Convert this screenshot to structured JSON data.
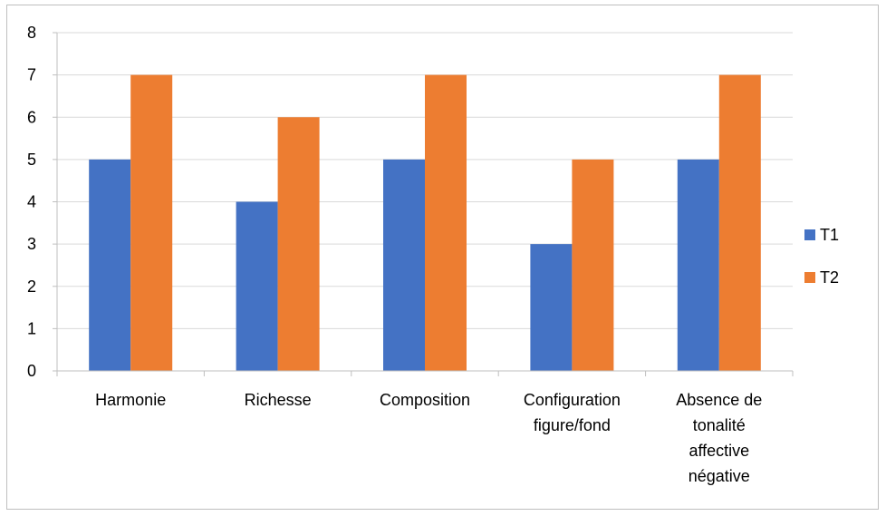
{
  "chart_data": {
    "type": "bar",
    "categories": [
      [
        "Harmonie"
      ],
      [
        "Richesse"
      ],
      [
        "Composition"
      ],
      [
        "Configuration",
        "figure/fond"
      ],
      [
        "Absence de",
        "tonalité",
        "affective",
        "négative"
      ]
    ],
    "series": [
      {
        "name": "T1",
        "color": "#4472C4",
        "values": [
          5,
          4,
          5,
          3,
          5
        ]
      },
      {
        "name": "T2",
        "color": "#ED7D31",
        "values": [
          7,
          6,
          7,
          5,
          7
        ]
      }
    ],
    "y_ticks": [
      "0",
      "1",
      "2",
      "3",
      "4",
      "5",
      "6",
      "7",
      "8"
    ],
    "ylim": [
      0,
      8
    ],
    "grid": true,
    "legend_position": "right",
    "title": "",
    "xlabel": "",
    "ylabel": ""
  }
}
